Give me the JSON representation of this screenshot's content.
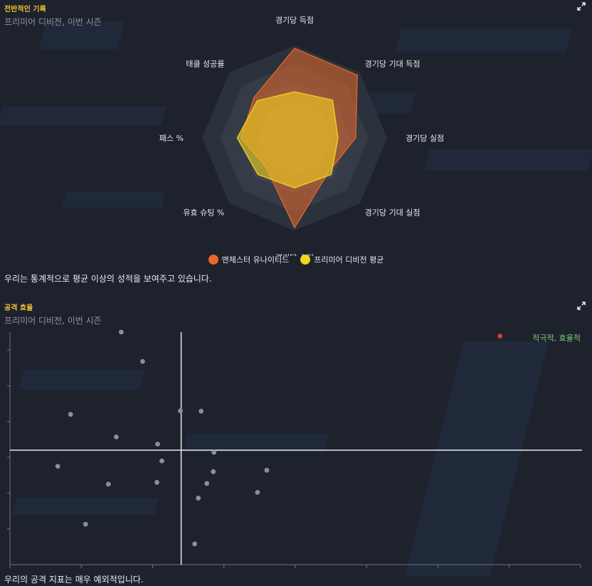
{
  "radar_panel": {
    "title": "전반적인 기록",
    "subtitle": "프리미어 디비전, 이번 시즌",
    "caption": "우리는 통계적으로 평균 이상의 성적을 보여주고 있습니다."
  },
  "scatter_panel": {
    "title": "공격 효율",
    "subtitle": "프리미어 디비전, 이번 시즌",
    "caption": "우리의 공격 지표는 매우 예외적입니다.",
    "quadrant_label": "적극적, 효율적"
  },
  "colors": {
    "team": "#e8692a",
    "average": "#f5d420",
    "highlight": "#e03a3a",
    "others": "#8a8f98",
    "quadrant_label": "#7fc878",
    "title": "#f2c230"
  },
  "chart_data": [
    {
      "type": "radar",
      "title": "전반적인 기록",
      "axes": [
        "경기당 득점",
        "경기당 기대 득점",
        "경기당 실점",
        "경기당 기대 실점",
        "경기당 슈팅",
        "유효 슈팅 %",
        "패스 %",
        "태클 성공률"
      ],
      "rlim": [
        0,
        1
      ],
      "series": [
        {
          "name": "맨체스터 유나이티드",
          "values": [
            0.97,
            0.96,
            0.66,
            0.52,
            0.97,
            0.44,
            0.58,
            0.62
          ]
        },
        {
          "name": "프리미어 디비전 평균",
          "values": [
            0.5,
            0.58,
            0.47,
            0.56,
            0.54,
            0.56,
            0.62,
            0.57
          ]
        }
      ],
      "legend": "bottom-center"
    },
    {
      "type": "scatter",
      "title": "공격 효율",
      "xlim": [
        0,
        8
      ],
      "ylim": [
        0,
        6.5
      ],
      "reference_lines": {
        "x": 2.4,
        "y": 3.2
      },
      "x_ticks": [
        0,
        1,
        2,
        3,
        4,
        5,
        6,
        7,
        8
      ],
      "y_ticks": [
        1,
        2,
        3,
        4,
        5,
        6
      ],
      "points": [
        {
          "x": 1.56,
          "y": 6.5
        },
        {
          "x": 1.86,
          "y": 5.68
        },
        {
          "x": 0.85,
          "y": 4.2
        },
        {
          "x": 2.39,
          "y": 4.3
        },
        {
          "x": 2.68,
          "y": 4.29
        },
        {
          "x": 1.49,
          "y": 3.57
        },
        {
          "x": 2.07,
          "y": 3.37
        },
        {
          "x": 2.86,
          "y": 3.14
        },
        {
          "x": 0.67,
          "y": 2.75
        },
        {
          "x": 2.13,
          "y": 2.9
        },
        {
          "x": 3.6,
          "y": 2.64
        },
        {
          "x": 2.85,
          "y": 2.6
        },
        {
          "x": 1.38,
          "y": 2.25
        },
        {
          "x": 2.06,
          "y": 2.3
        },
        {
          "x": 2.76,
          "y": 2.27
        },
        {
          "x": 3.47,
          "y": 2.02
        },
        {
          "x": 2.64,
          "y": 1.86
        },
        {
          "x": 1.06,
          "y": 1.13
        },
        {
          "x": 2.59,
          "y": 0.58
        },
        {
          "x": 6.87,
          "y": 6.39,
          "highlight": true
        }
      ]
    }
  ]
}
